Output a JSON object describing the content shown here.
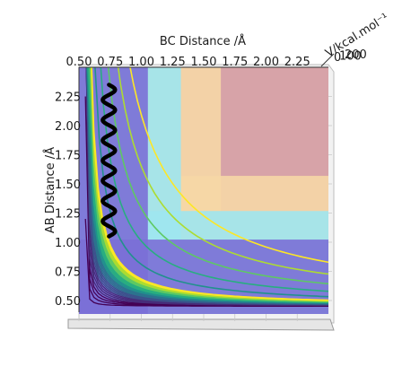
{
  "chart_data": {
    "type": "contour",
    "xlabel": "BC Distance /Å",
    "ylabel": "AB Distance /Å",
    "zlabel": "V/kcal.mol⁻¹",
    "x_ticks": [
      "0.50",
      "0.75",
      "1.00",
      "1.25",
      "1.50",
      "1.75",
      "2.00",
      "2.25"
    ],
    "y_ticks": [
      "0.50",
      "0.75",
      "1.00",
      "1.25",
      "1.50",
      "1.75",
      "2.00",
      "2.25"
    ],
    "z_ticks": [
      "0",
      "100",
      "200"
    ],
    "xlim": [
      0.5,
      2.5
    ],
    "ylim": [
      0.4,
      2.5
    ],
    "colormap": "viridis",
    "trajectory_color": "#000000",
    "trajectory": {
      "x_center": 0.74,
      "y_start": 1.05,
      "y_end": 2.35,
      "amplitude": 0.05,
      "oscillations": 7.5
    },
    "surface_colors": {
      "low": "#7b6fd6",
      "mid": "#9fe6ef",
      "high": "#f6d7a6",
      "top": "#d7a3a8"
    }
  }
}
